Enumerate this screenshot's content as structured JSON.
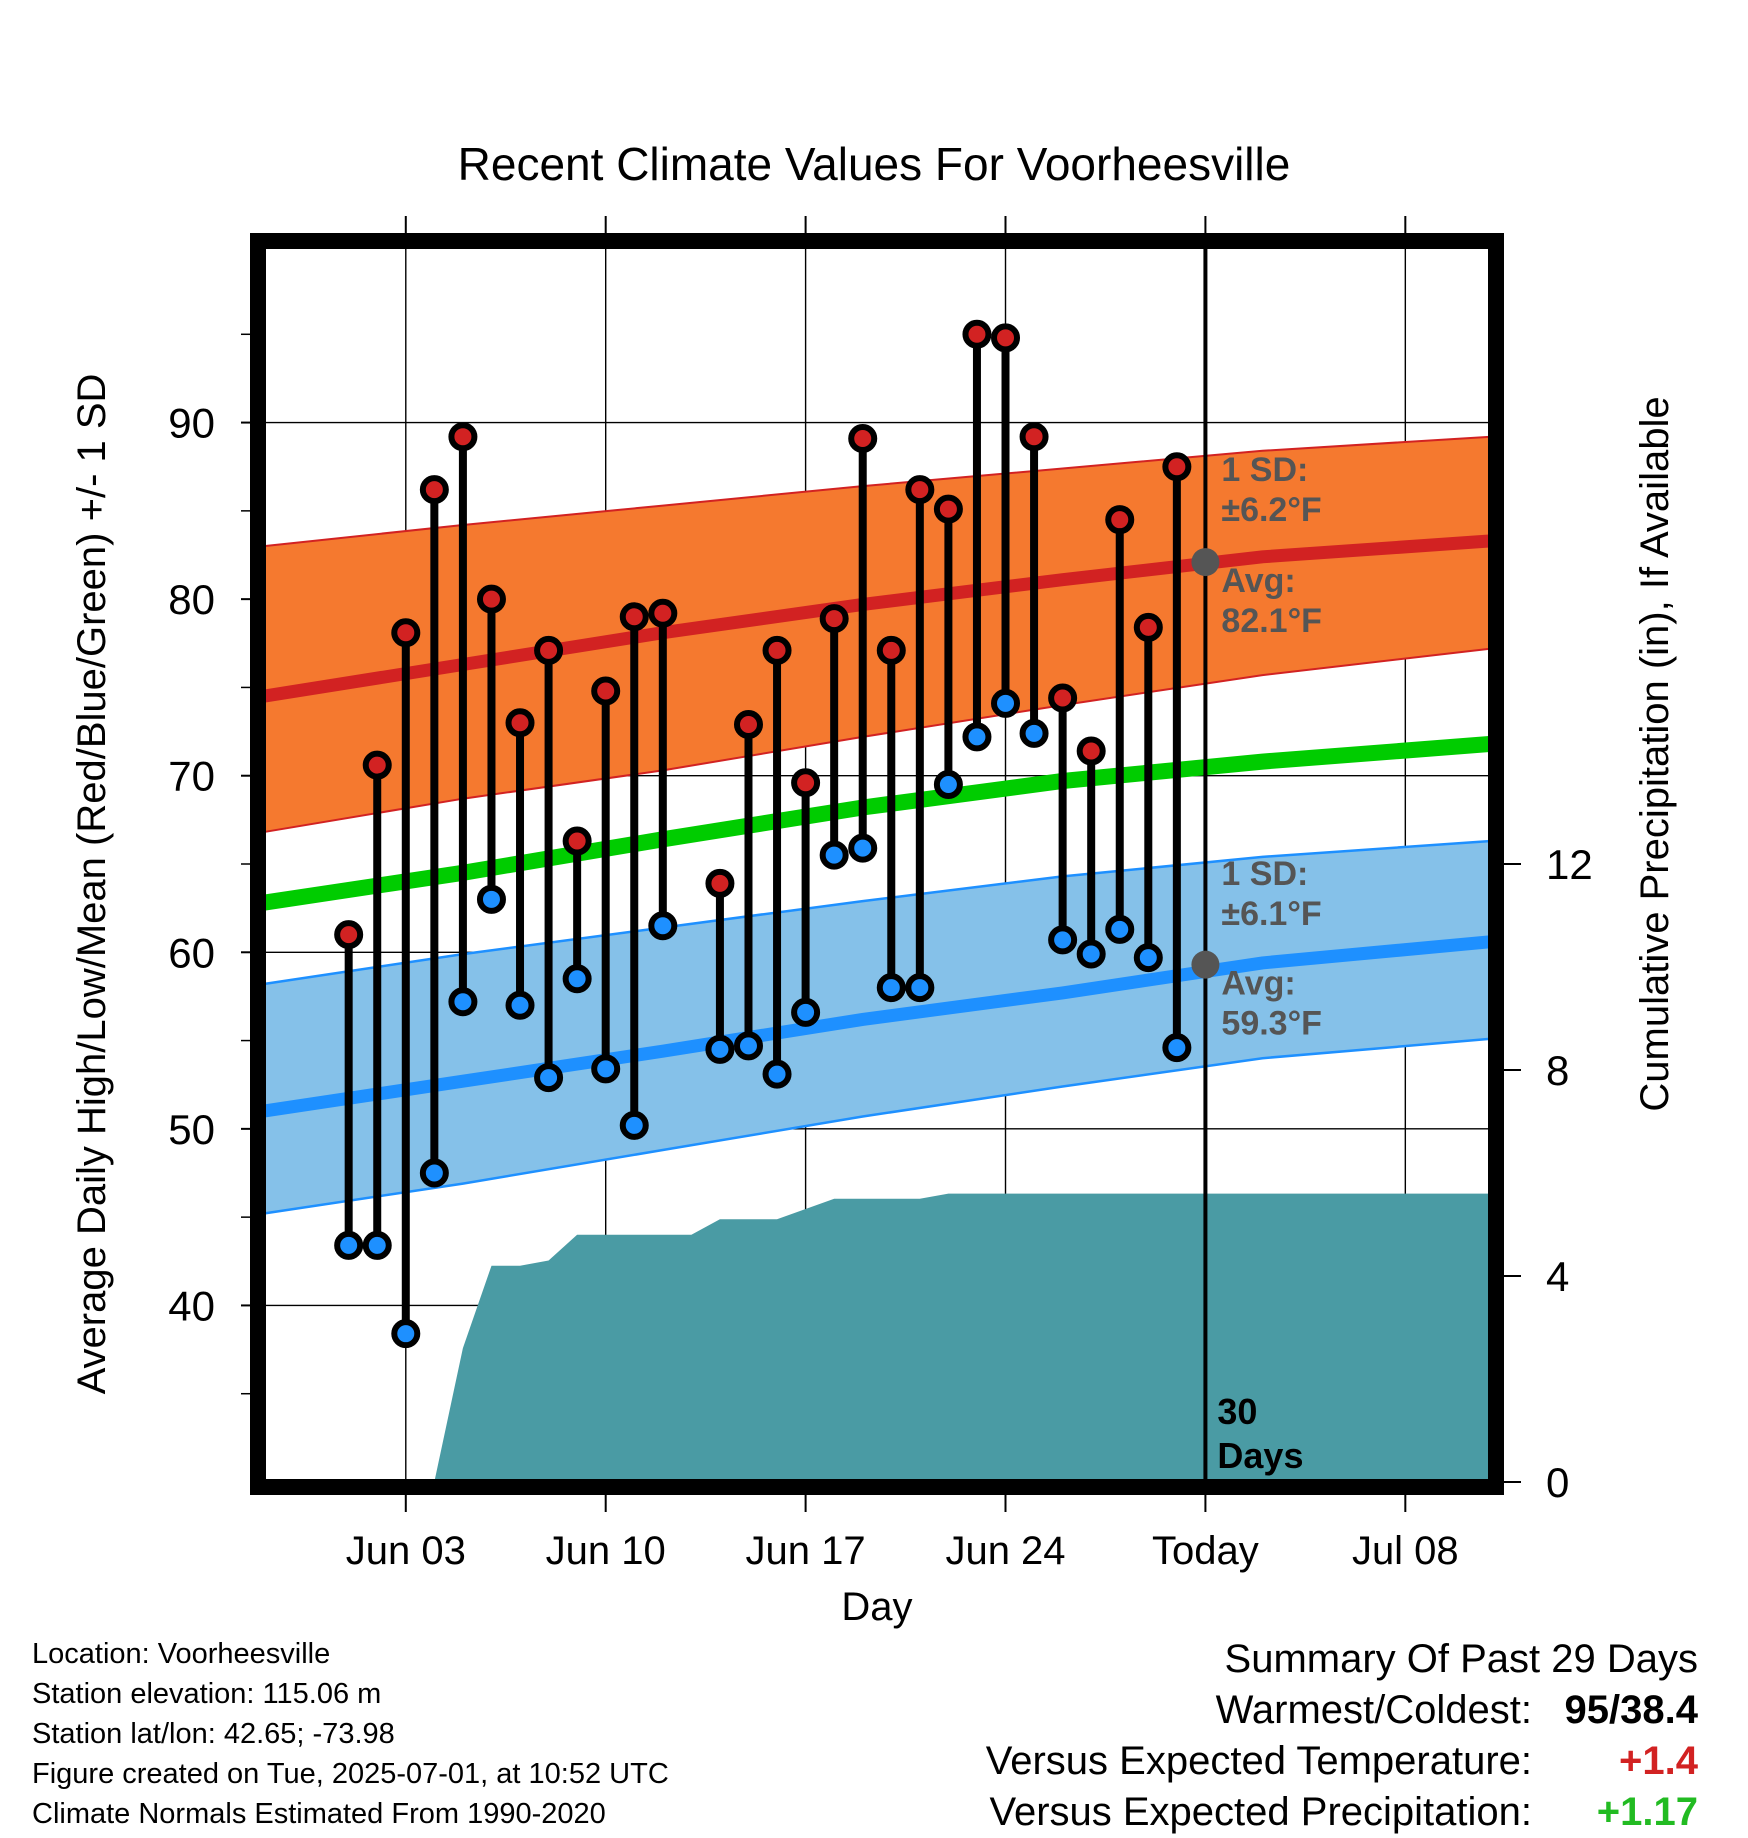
{
  "chart_data": {
    "type": "line",
    "title": "Recent Climate Values For Voorheesville",
    "xlabel": "Day",
    "ylabel_left": "Average Daily High/Low/Mean (Red/Blue/Green) +/- 1 SD",
    "ylabel_right": "Cumulative Precipitation (in), If Available",
    "x_range": [
      "2025-05-29",
      "2025-07-11"
    ],
    "ylim_left": [
      30,
      100
    ],
    "ylim_right": [
      0,
      24
    ],
    "x_ticks": [
      {
        "date": "2025-06-03",
        "label": "Jun 03"
      },
      {
        "date": "2025-06-10",
        "label": "Jun 10"
      },
      {
        "date": "2025-06-17",
        "label": "Jun 17"
      },
      {
        "date": "2025-06-24",
        "label": "Jun 24"
      },
      {
        "date": "2025-07-01",
        "label": "Today"
      },
      {
        "date": "2025-07-08",
        "label": "Jul 08"
      }
    ],
    "y_ticks_left": [
      40,
      50,
      60,
      70,
      80,
      90
    ],
    "y_ticks_right": [
      0,
      4,
      8,
      12
    ],
    "grid": true,
    "today": "2025-07-01",
    "today_label": "30\nDays",
    "daily": [
      {
        "date": "2025-06-01",
        "high": 61.0,
        "low": 43.4
      },
      {
        "date": "2025-06-02",
        "high": 70.6,
        "low": 43.4
      },
      {
        "date": "2025-06-03",
        "high": 78.1,
        "low": 38.4
      },
      {
        "date": "2025-06-04",
        "high": 86.2,
        "low": 47.5
      },
      {
        "date": "2025-06-05",
        "high": 89.2,
        "low": 57.2
      },
      {
        "date": "2025-06-06",
        "high": 80.0,
        "low": 63.0
      },
      {
        "date": "2025-06-07",
        "high": 73.0,
        "low": 57.0
      },
      {
        "date": "2025-06-08",
        "high": 77.1,
        "low": 52.9
      },
      {
        "date": "2025-06-09",
        "high": 66.3,
        "low": 58.5
      },
      {
        "date": "2025-06-10",
        "high": 74.8,
        "low": 53.4
      },
      {
        "date": "2025-06-11",
        "high": 79.0,
        "low": 50.2
      },
      {
        "date": "2025-06-12",
        "high": 79.2,
        "low": 61.5
      },
      {
        "date": "2025-06-14",
        "high": 63.9,
        "low": 54.5
      },
      {
        "date": "2025-06-15",
        "high": 72.9,
        "low": 54.7
      },
      {
        "date": "2025-06-16",
        "high": 77.1,
        "low": 53.1
      },
      {
        "date": "2025-06-17",
        "high": 69.6,
        "low": 56.6
      },
      {
        "date": "2025-06-18",
        "high": 78.9,
        "low": 65.5
      },
      {
        "date": "2025-06-19",
        "high": 89.1,
        "low": 65.9
      },
      {
        "date": "2025-06-20",
        "high": 77.1,
        "low": 58.0
      },
      {
        "date": "2025-06-21",
        "high": 86.2,
        "low": 58.0
      },
      {
        "date": "2025-06-22",
        "high": 85.1,
        "low": 69.5
      },
      {
        "date": "2025-06-23",
        "high": 95.0,
        "low": 72.2
      },
      {
        "date": "2025-06-24",
        "high": 94.8,
        "low": 74.1
      },
      {
        "date": "2025-06-25",
        "high": 89.2,
        "low": 72.4
      },
      {
        "date": "2025-06-26",
        "high": 74.4,
        "low": 60.7
      },
      {
        "date": "2025-06-27",
        "high": 71.4,
        "low": 59.9
      },
      {
        "date": "2025-06-28",
        "high": 84.5,
        "low": 61.3
      },
      {
        "date": "2025-06-29",
        "high": 78.4,
        "low": 59.7
      },
      {
        "date": "2025-06-30",
        "high": 87.5,
        "low": 54.6
      }
    ],
    "normals": {
      "dates": [
        "2025-05-29",
        "2025-06-05",
        "2025-06-12",
        "2025-06-19",
        "2025-06-26",
        "2025-07-03",
        "2025-07-11"
      ],
      "high_avg": [
        74.5,
        76.3,
        78.1,
        79.7,
        81.1,
        82.4,
        83.3
      ],
      "high_upper": [
        83.0,
        84.2,
        85.3,
        86.4,
        87.4,
        88.4,
        89.2
      ],
      "high_lower": [
        66.8,
        68.7,
        70.3,
        72.2,
        74.0,
        75.7,
        77.2
      ],
      "low_avg": [
        51.0,
        52.7,
        54.4,
        56.2,
        57.7,
        59.4,
        60.6
      ],
      "low_upper": [
        58.2,
        59.9,
        61.4,
        62.9,
        64.3,
        65.4,
        66.3
      ],
      "low_lower": [
        45.2,
        46.9,
        48.8,
        50.7,
        52.4,
        54.0,
        55.1
      ],
      "mean_avg": [
        62.8,
        64.5,
        66.4,
        68.2,
        69.7,
        70.8,
        71.8
      ]
    },
    "high_sd_label": [
      "1 SD:",
      "±6.2°F"
    ],
    "high_avg_label": [
      "Avg:",
      "82.1°F"
    ],
    "low_sd_label": [
      "1 SD:",
      "±6.1°F"
    ],
    "low_avg_label": [
      "Avg:",
      "59.3°F"
    ],
    "today_high_avg": 82.1,
    "today_low_avg": 59.3,
    "precip_cumulative": {
      "dates": [
        "2025-06-04",
        "2025-06-05",
        "2025-06-06",
        "2025-06-07",
        "2025-06-08",
        "2025-06-09",
        "2025-06-10",
        "2025-06-13",
        "2025-06-14",
        "2025-06-16",
        "2025-06-17",
        "2025-06-18",
        "2025-06-21",
        "2025-06-22",
        "2025-06-26",
        "2025-07-11"
      ],
      "values": [
        0.0,
        2.6,
        4.2,
        4.2,
        4.3,
        4.8,
        4.8,
        4.8,
        5.1,
        5.1,
        5.3,
        5.5,
        5.5,
        5.6,
        5.6,
        5.6
      ]
    },
    "colors": {
      "high_band": "#f5792f",
      "high_line": "#d22222",
      "low_band": "#85c1e9",
      "low_line": "#1e90ff",
      "mean_line": "#00cc00",
      "precip": "#4a9ba4",
      "annotation": "#555555"
    }
  },
  "info": [
    "Location: Voorheesville",
    "Station elevation: 115.06 m",
    "Station lat/lon: 42.65; -73.98",
    "Figure created on Tue, 2025-07-01, at 10:52 UTC",
    "Climate Normals Estimated From 1990-2020"
  ],
  "summary": {
    "title": "Summary Of Past 29 Days",
    "warm_cold_label": "Warmest/Coldest:",
    "warm_cold_value": "95/38.4",
    "temp_label": "Versus Expected Temperature:",
    "temp_value": "+1.4",
    "temp_color": "#d22222",
    "precip_label": "Versus Expected Precipitation:",
    "precip_value": "+1.17",
    "precip_color": "#22bb22"
  }
}
